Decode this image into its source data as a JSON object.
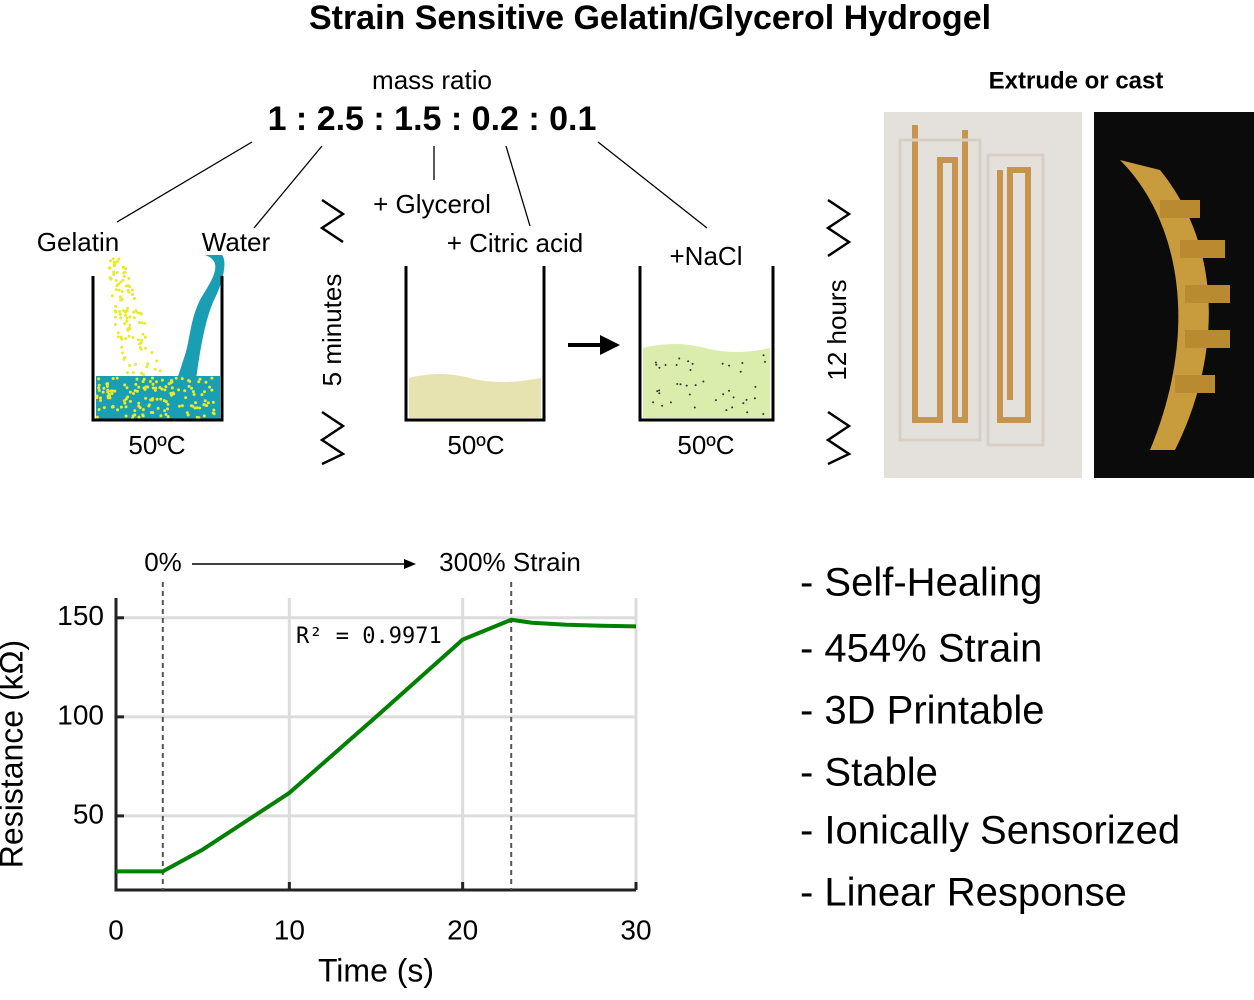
{
  "title": "Strain Sensitive Gelatin/Glycerol Hydrogel",
  "mass_ratio": {
    "label": "mass ratio",
    "ratio": "1 : 2.5 : 1.5 : 0.2 : 0.1"
  },
  "ingredients": [
    "Gelatin",
    "Water",
    "+ Glycerol",
    "+ Citric acid",
    "+NaCl"
  ],
  "temperatures": [
    "50ºC",
    "50ºC",
    "50ºC"
  ],
  "durations": [
    "5 minutes",
    "12 hours"
  ],
  "photos_label": "Extrude or cast",
  "features": [
    "- Self-Healing",
    "- 454% Strain",
    "- 3D Printable",
    "- Stable",
    "- Ionically Sensorized",
    "- Linear Response"
  ],
  "chart_data": {
    "type": "line",
    "x_label": "Time (s)",
    "y_label": "Resistance (kΩ)",
    "x": [
      0,
      2.7,
      5,
      10,
      15,
      20,
      22.8,
      24,
      26,
      28,
      30
    ],
    "series": [
      {
        "name": "Resistance",
        "color": "#008000",
        "values": [
          22,
          22,
          33,
          61.6,
          100,
          139,
          149,
          147.5,
          146.5,
          146,
          145.7
        ]
      }
    ],
    "xlim": [
      0,
      30
    ],
    "ylim": [
      12.6,
      160
    ],
    "xticks": [
      0,
      10,
      20,
      30
    ],
    "yticks": [
      50,
      100,
      150
    ],
    "grid": true,
    "vlines": [
      2.7,
      22.8
    ],
    "annotations": [
      "0%",
      "300% Strain",
      "R² = 0.9971"
    ]
  }
}
